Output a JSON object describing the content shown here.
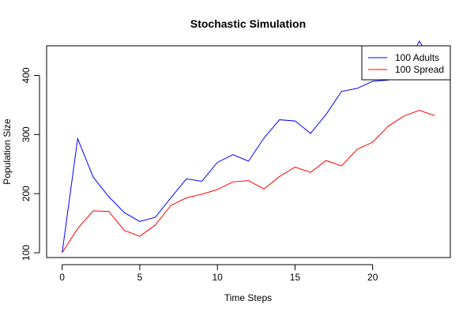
{
  "chart_data": {
    "type": "line",
    "title": "Stochastic Simulation",
    "xlabel": "Time Steps",
    "ylabel": "Population Size",
    "xlim": [
      -1,
      25
    ],
    "ylim": [
      92,
      450
    ],
    "xticks": [
      0,
      5,
      10,
      15,
      20
    ],
    "yticks": [
      100,
      200,
      300,
      400
    ],
    "grid": false,
    "legend_position": "top-right",
    "x": [
      0,
      1,
      2,
      3,
      4,
      5,
      6,
      7,
      8,
      9,
      10,
      11,
      12,
      13,
      14,
      15,
      16,
      17,
      18,
      19,
      20,
      21,
      22,
      23,
      24
    ],
    "series": [
      {
        "name": "100 Adults",
        "color": "#0000ff",
        "values": [
          100,
          293,
          228,
          195,
          168,
          153,
          160,
          193,
          225,
          221,
          253,
          266,
          255,
          294,
          325,
          323,
          302,
          334,
          373,
          378,
          390,
          392,
          403,
          458,
          417
        ]
      },
      {
        "name": "100 Spread",
        "color": "#ff0000",
        "values": [
          100,
          141,
          171,
          170,
          138,
          128,
          147,
          180,
          193,
          199,
          207,
          220,
          222,
          208,
          229,
          245,
          236,
          256,
          247,
          275,
          287,
          314,
          331,
          341,
          332
        ]
      }
    ]
  }
}
